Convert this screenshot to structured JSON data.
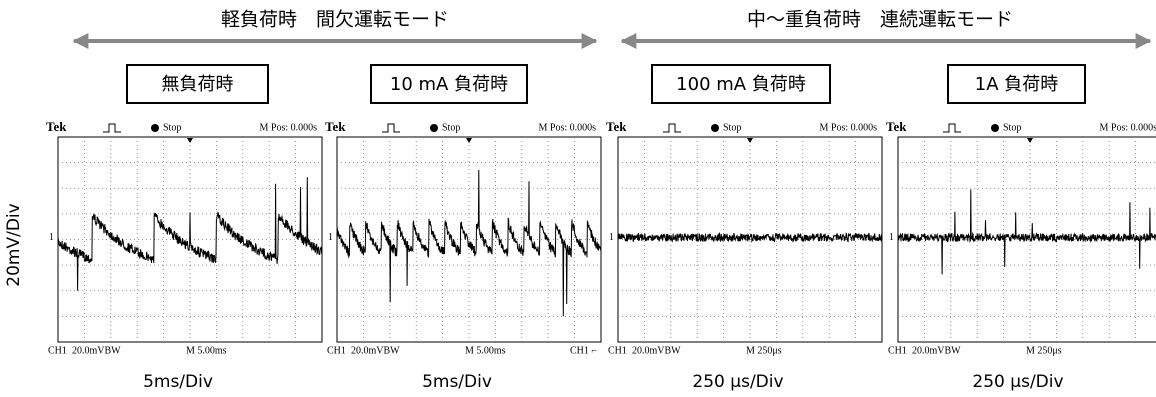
{
  "header": {
    "left_mode": "軽負荷時　間欠運転モード",
    "right_mode": "中～重負荷時　連続運転モード"
  },
  "y_axis_label": "20mV/Div",
  "panels": [
    {
      "condition": "無負荷時",
      "time_div": "5ms/Div",
      "scope": {
        "brand": "Tek",
        "state": "Stop",
        "position": "M Pos: 0.000s",
        "channel": "CH1",
        "volts": "20.0mVBW",
        "timebase": "M 5.00ms",
        "marker": "1"
      }
    },
    {
      "condition": "10 mA 負荷時",
      "time_div": "5ms/Div",
      "scope": {
        "brand": "Tek",
        "state": "Stop",
        "position": "M Pos: 0.000s",
        "channel": "CH1",
        "volts": "20.0mVBW",
        "timebase": "M 5.00ms",
        "trigger": "CH1 ⌐",
        "marker": "1"
      }
    },
    {
      "condition": "100 mA 負荷時",
      "time_div": "250 μs/Div",
      "scope": {
        "brand": "Tek",
        "state": "Stop",
        "position": "M Pos: 0.000s",
        "channel": "CH1",
        "volts": "20.0mVBW",
        "timebase": "M 250μs",
        "marker": "1"
      }
    },
    {
      "condition": "1A 負荷時",
      "time_div": "250 μs/Div",
      "scope": {
        "brand": "Tek",
        "state": "Stop",
        "position": "M Pos: 0.000s",
        "channel": "CH1",
        "volts": "20.0mVBW",
        "timebase": "M 250μs",
        "marker": "1"
      }
    }
  ]
}
